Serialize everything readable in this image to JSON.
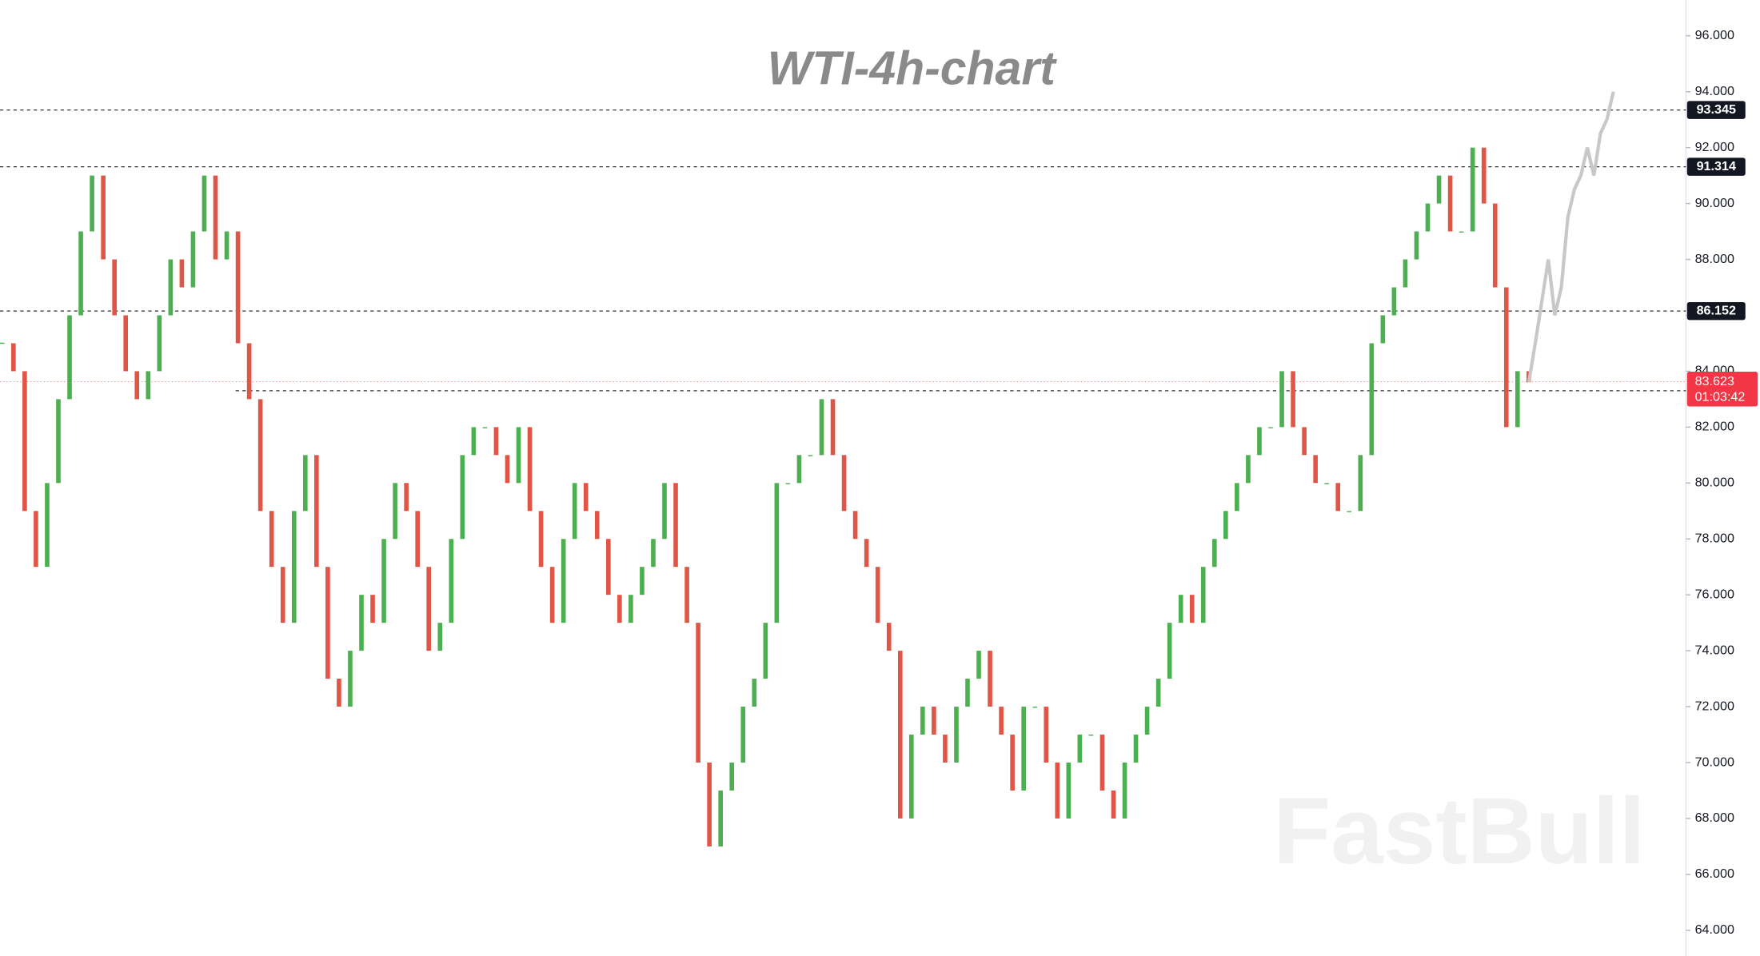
{
  "chart_data": {
    "type": "candlestick",
    "title": "WTI-4h-chart",
    "watermark": "FastBull",
    "series": [
      {
        "name": "WTI",
        "color_up": "#4caf50",
        "color_down": "#e05545",
        "values": [
          85,
          84,
          79,
          77,
          80,
          83,
          86,
          89,
          91,
          88,
          86,
          84,
          83,
          84,
          86,
          88,
          87,
          89,
          91,
          88,
          89,
          85,
          83,
          79,
          77,
          75,
          79,
          81,
          77,
          73,
          72,
          74,
          76,
          75,
          78,
          80,
          79,
          77,
          74,
          75,
          78,
          81,
          82,
          82,
          81,
          80,
          82,
          79,
          77,
          75,
          78,
          80,
          79,
          78,
          76,
          75,
          76,
          77,
          78,
          80,
          77,
          75,
          70,
          67,
          69,
          70,
          72,
          73,
          75,
          80,
          80,
          81,
          81,
          83,
          81,
          79,
          78,
          77,
          75,
          74,
          68,
          71,
          72,
          71,
          70,
          72,
          73,
          74,
          72,
          71,
          69,
          72,
          72,
          70,
          68,
          70,
          71,
          71,
          69,
          68,
          70,
          71,
          72,
          73,
          75,
          76,
          75,
          77,
          78,
          79,
          80,
          81,
          82,
          82,
          84,
          82,
          81,
          80,
          80,
          79,
          79,
          81,
          85,
          86,
          87,
          88,
          89,
          90,
          91,
          89,
          89,
          92,
          90,
          87,
          82,
          84,
          83.6
        ]
      },
      {
        "name": "projection",
        "color": "#c8c8c8",
        "values": [
          83.6,
          85,
          86.5,
          88,
          86,
          87,
          89.5,
          90.5,
          91,
          92,
          91,
          92.5,
          93,
          94
        ]
      }
    ],
    "levels": [
      93.345,
      91.314,
      86.152
    ],
    "support_line": 83.3,
    "last_price": 83.623,
    "countdown": "01:03:42",
    "ylim": [
      63.08,
      97.28
    ],
    "yticks": [
      {
        "value": 64,
        "label": "64.000"
      },
      {
        "value": 66,
        "label": "66.000"
      },
      {
        "value": 68,
        "label": "68.000"
      },
      {
        "value": 70,
        "label": "70.000"
      },
      {
        "value": 72,
        "label": "72.000"
      },
      {
        "value": 74,
        "label": "74.000"
      },
      {
        "value": 76,
        "label": "76.000"
      },
      {
        "value": 78,
        "label": "78.000"
      },
      {
        "value": 80,
        "label": "80.000"
      },
      {
        "value": 82,
        "label": "82.000"
      },
      {
        "value": 84,
        "label": "84.000"
      },
      {
        "value": 86,
        "label": "86.000"
      },
      {
        "value": 88,
        "label": "88.000"
      },
      {
        "value": 90,
        "label": "90.000"
      },
      {
        "value": 92,
        "label": "92.000"
      },
      {
        "value": 94,
        "label": "94.000"
      },
      {
        "value": 96,
        "label": "96.000"
      }
    ]
  }
}
